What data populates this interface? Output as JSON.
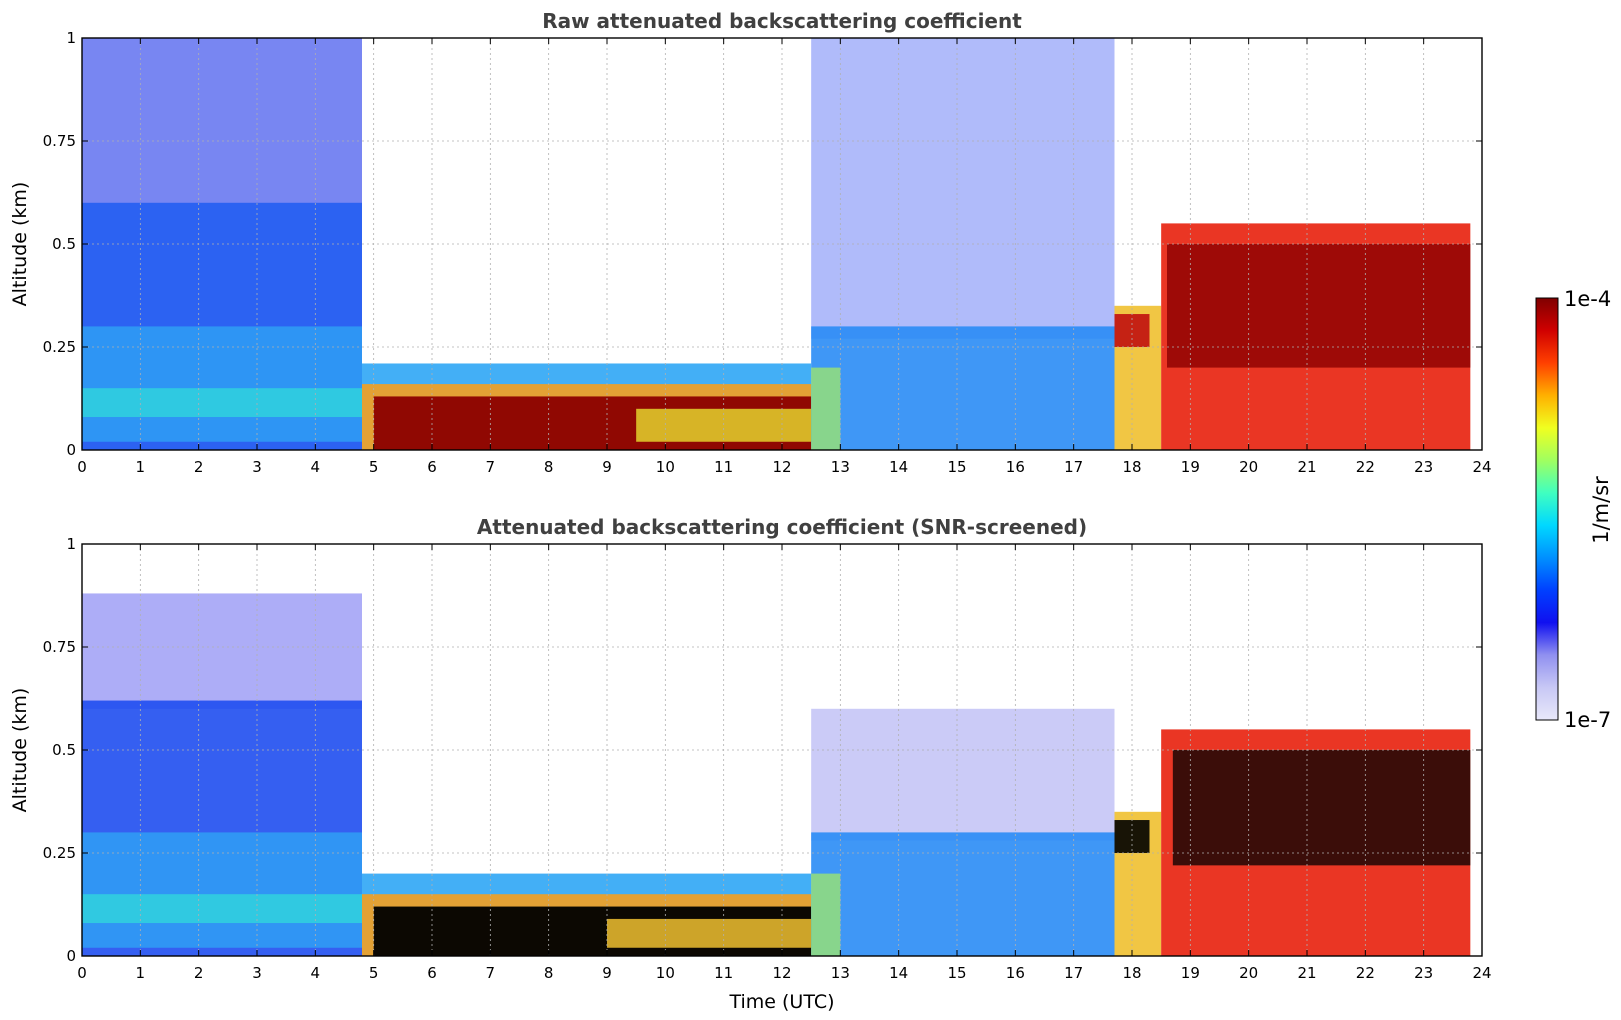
{
  "chart_data": [
    {
      "type": "heatmap",
      "title": "Raw attenuated backscattering coefficient",
      "xlabel": "",
      "ylabel": "Altitude (km)",
      "xlim": [
        0,
        24
      ],
      "ylim": [
        0,
        1
      ],
      "x_ticks": [
        "0",
        "1",
        "2",
        "3",
        "4",
        "5",
        "6",
        "7",
        "8",
        "9",
        "10",
        "11",
        "12",
        "13",
        "14",
        "15",
        "16",
        "17",
        "18",
        "19",
        "20",
        "21",
        "22",
        "23",
        "24"
      ],
      "y_ticks": [
        "0",
        "0.25",
        "0.5",
        "0.75",
        "1"
      ],
      "grid": true,
      "bands": [
        {
          "x0": 0,
          "x1": 4.8,
          "y0": 0,
          "y1": 1.0,
          "color": "#0a22e8",
          "opacity": 0.55
        },
        {
          "x0": 0,
          "x1": 4.8,
          "y0": 0,
          "y1": 0.6,
          "color": "#1f5cf2",
          "opacity": 0.85
        },
        {
          "x0": 0,
          "x1": 4.8,
          "y0": 0.02,
          "y1": 0.3,
          "color": "#2f9ff5",
          "opacity": 0.85
        },
        {
          "x0": 0,
          "x1": 4.8,
          "y0": 0.08,
          "y1": 0.15,
          "color": "#30e0d8",
          "opacity": 0.7
        },
        {
          "x0": 4.8,
          "x1": 12.5,
          "y0": 0,
          "y1": 0.21,
          "color": "#2fa6f5",
          "opacity": 0.9
        },
        {
          "x0": 4.8,
          "x1": 12.5,
          "y0": 0,
          "y1": 0.16,
          "color": "#f5a020",
          "opacity": 0.9
        },
        {
          "x0": 5.0,
          "x1": 12.5,
          "y0": 0,
          "y1": 0.13,
          "color": "#8b0000",
          "opacity": 0.95
        },
        {
          "x0": 9.5,
          "x1": 12.5,
          "y0": 0.02,
          "y1": 0.1,
          "color": "#e8e030",
          "opacity": 0.8
        },
        {
          "x0": 12.5,
          "x1": 17.7,
          "y0": 0.27,
          "y1": 1.0,
          "color": "#1c3cf0",
          "opacity": 0.35
        },
        {
          "x0": 12.5,
          "x1": 17.7,
          "y0": 0,
          "y1": 0.3,
          "color": "#2a8cf5",
          "opacity": 0.9
        },
        {
          "x0": 12.5,
          "x1": 13.0,
          "y0": 0,
          "y1": 0.2,
          "color": "#a8f060",
          "opacity": 0.7
        },
        {
          "x0": 17.7,
          "x1": 18.5,
          "y0": 0,
          "y1": 0.35,
          "color": "#f0c030",
          "opacity": 0.9
        },
        {
          "x0": 17.7,
          "x1": 18.3,
          "y0": 0.25,
          "y1": 0.33,
          "color": "#c01010",
          "opacity": 0.9
        },
        {
          "x0": 18.5,
          "x1": 23.8,
          "y0": 0,
          "y1": 0.55,
          "color": "#e8200c",
          "opacity": 0.9
        },
        {
          "x0": 18.6,
          "x1": 23.8,
          "y0": 0.2,
          "y1": 0.5,
          "color": "#8b0000",
          "opacity": 0.8
        }
      ]
    },
    {
      "type": "heatmap",
      "title": "Attenuated backscattering coefficient (SNR-screened)",
      "xlabel": "Time (UTC)",
      "ylabel": "Altitude (km)",
      "xlim": [
        0,
        24
      ],
      "ylim": [
        0,
        1
      ],
      "x_ticks": [
        "0",
        "1",
        "2",
        "3",
        "4",
        "5",
        "6",
        "7",
        "8",
        "9",
        "10",
        "11",
        "12",
        "13",
        "14",
        "15",
        "16",
        "17",
        "18",
        "19",
        "20",
        "21",
        "22",
        "23",
        "24"
      ],
      "y_ticks": [
        "0",
        "0.25",
        "0.5",
        "0.75",
        "1"
      ],
      "grid": true,
      "bands": [
        {
          "x0": 0,
          "x1": 4.8,
          "y0": 0.6,
          "y1": 0.88,
          "color": "#6a6af0",
          "opacity": 0.55
        },
        {
          "x0": 0,
          "x1": 4.8,
          "y0": 0,
          "y1": 0.62,
          "color": "#1f4ef0",
          "opacity": 0.9
        },
        {
          "x0": 0,
          "x1": 4.8,
          "y0": 0.02,
          "y1": 0.3,
          "color": "#2f9ff5",
          "opacity": 0.85
        },
        {
          "x0": 0,
          "x1": 4.8,
          "y0": 0.08,
          "y1": 0.15,
          "color": "#30e0d8",
          "opacity": 0.7
        },
        {
          "x0": 4.8,
          "x1": 12.5,
          "y0": 0,
          "y1": 0.2,
          "color": "#2fa6f5",
          "opacity": 0.9
        },
        {
          "x0": 4.8,
          "x1": 12.5,
          "y0": 0,
          "y1": 0.15,
          "color": "#f5a020",
          "opacity": 0.9
        },
        {
          "x0": 5.0,
          "x1": 12.5,
          "y0": 0,
          "y1": 0.12,
          "color": "#000000",
          "opacity": 0.95
        },
        {
          "x0": 9.0,
          "x1": 12.5,
          "y0": 0.02,
          "y1": 0.09,
          "color": "#f0c030",
          "opacity": 0.85
        },
        {
          "x0": 12.5,
          "x1": 17.7,
          "y0": 0.28,
          "y1": 0.6,
          "color": "#9898f0",
          "opacity": 0.5
        },
        {
          "x0": 12.5,
          "x1": 17.7,
          "y0": 0,
          "y1": 0.3,
          "color": "#2a8cf5",
          "opacity": 0.9
        },
        {
          "x0": 12.5,
          "x1": 13.0,
          "y0": 0,
          "y1": 0.2,
          "color": "#a8f060",
          "opacity": 0.7
        },
        {
          "x0": 17.7,
          "x1": 18.5,
          "y0": 0,
          "y1": 0.35,
          "color": "#f0c030",
          "opacity": 0.9
        },
        {
          "x0": 17.7,
          "x1": 18.3,
          "y0": 0.25,
          "y1": 0.33,
          "color": "#000000",
          "opacity": 0.9
        },
        {
          "x0": 18.5,
          "x1": 23.8,
          "y0": 0,
          "y1": 0.55,
          "color": "#e8200c",
          "opacity": 0.9
        },
        {
          "x0": 18.7,
          "x1": 23.8,
          "y0": 0.22,
          "y1": 0.5,
          "color": "#000000",
          "opacity": 0.75
        }
      ]
    }
  ],
  "colorbar": {
    "label": "1/m/sr",
    "max_label": "1e-4",
    "min_label": "1e-7",
    "colors": [
      "#e8e8fa",
      "#c8c8f5",
      "#9090f0",
      "#1010f0",
      "#0040ff",
      "#0090ff",
      "#00d8ff",
      "#40ffc0",
      "#a0ff60",
      "#f0ff20",
      "#ffb000",
      "#ff4000",
      "#d00000",
      "#800000"
    ]
  }
}
